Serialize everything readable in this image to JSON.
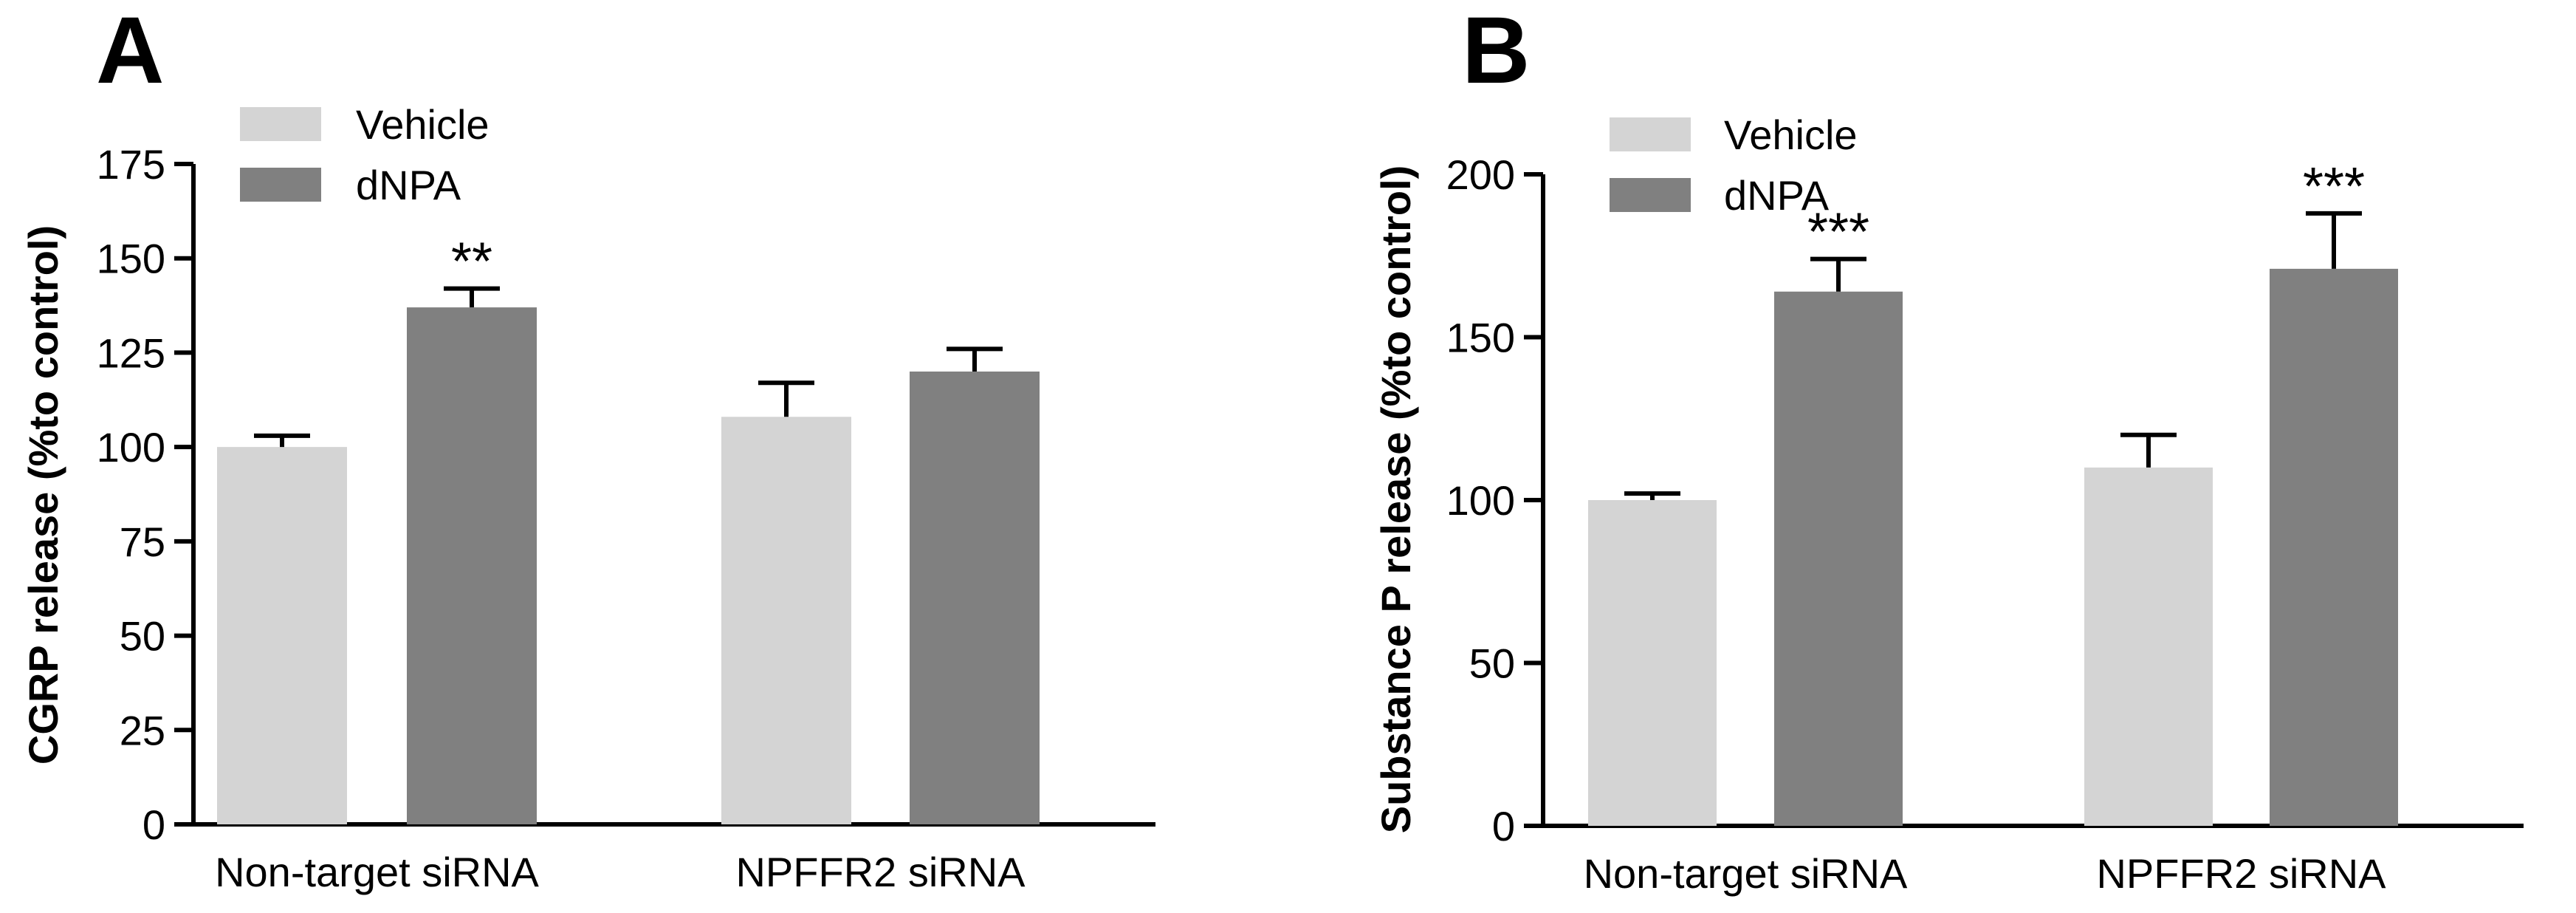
{
  "chart_data": [
    {
      "type": "bar",
      "panel_label": "A",
      "ylabel": "CGRP release (%to control)",
      "xlabel": "",
      "ylim": [
        0,
        175
      ],
      "yticks": [
        0,
        25,
        50,
        75,
        100,
        125,
        150,
        175
      ],
      "ytick_labels": [
        "0",
        "25",
        "50",
        "75",
        "100",
        "125",
        "150",
        "175"
      ],
      "categories": [
        "Non-target siRNA",
        "NPFFR2 siRNA"
      ],
      "series": [
        {
          "name": "Vehicle",
          "color": "#d4d4d4",
          "values": [
            100,
            108
          ],
          "errors": [
            3,
            9
          ]
        },
        {
          "name": "dNPA",
          "color": "#808080",
          "values": [
            137,
            120
          ],
          "errors": [
            5,
            6
          ]
        }
      ],
      "annotations": [
        {
          "text": "**",
          "series": 1,
          "category": 0
        }
      ],
      "legend": "top-left"
    },
    {
      "type": "bar",
      "panel_label": "B",
      "ylabel": "Substance P release (%to control)",
      "xlabel": "",
      "ylim": [
        0,
        200
      ],
      "yticks": [
        0,
        50,
        100,
        150,
        200
      ],
      "ytick_labels": [
        "0",
        "50",
        "100",
        "150",
        "200"
      ],
      "categories": [
        "Non-target siRNA",
        "NPFFR2 siRNA"
      ],
      "series": [
        {
          "name": "Vehicle",
          "color": "#d4d4d4",
          "values": [
            100,
            110
          ],
          "errors": [
            2,
            10
          ]
        },
        {
          "name": "dNPA",
          "color": "#808080",
          "values": [
            164,
            171
          ],
          "errors": [
            10,
            17
          ]
        }
      ],
      "annotations": [
        {
          "text": "***",
          "series": 1,
          "category": 0
        },
        {
          "text": "***",
          "series": 1,
          "category": 1
        }
      ],
      "legend": "top-left"
    }
  ]
}
